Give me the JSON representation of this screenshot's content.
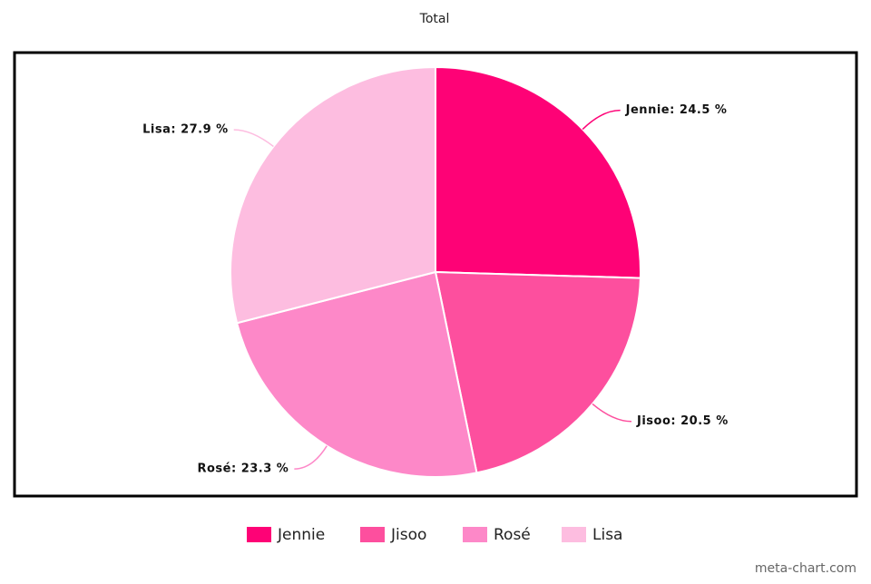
{
  "chart_data": {
    "type": "pie",
    "title": "Total",
    "categories": [
      "Jennie",
      "Jisoo",
      "Rosé",
      "Lisa"
    ],
    "values": [
      24.5,
      20.5,
      23.3,
      27.9
    ],
    "value_labels": [
      "Jennie: 24.5 %",
      "Jisoo: 20.5 %",
      "Rosé: 23.3 %",
      "Lisa: 27.9 %"
    ],
    "colors": [
      "#fe0276",
      "#fd4f9e",
      "#fd88c8",
      "#fdbde0"
    ],
    "legend": "bottom"
  },
  "watermark": "meta-chart.com"
}
